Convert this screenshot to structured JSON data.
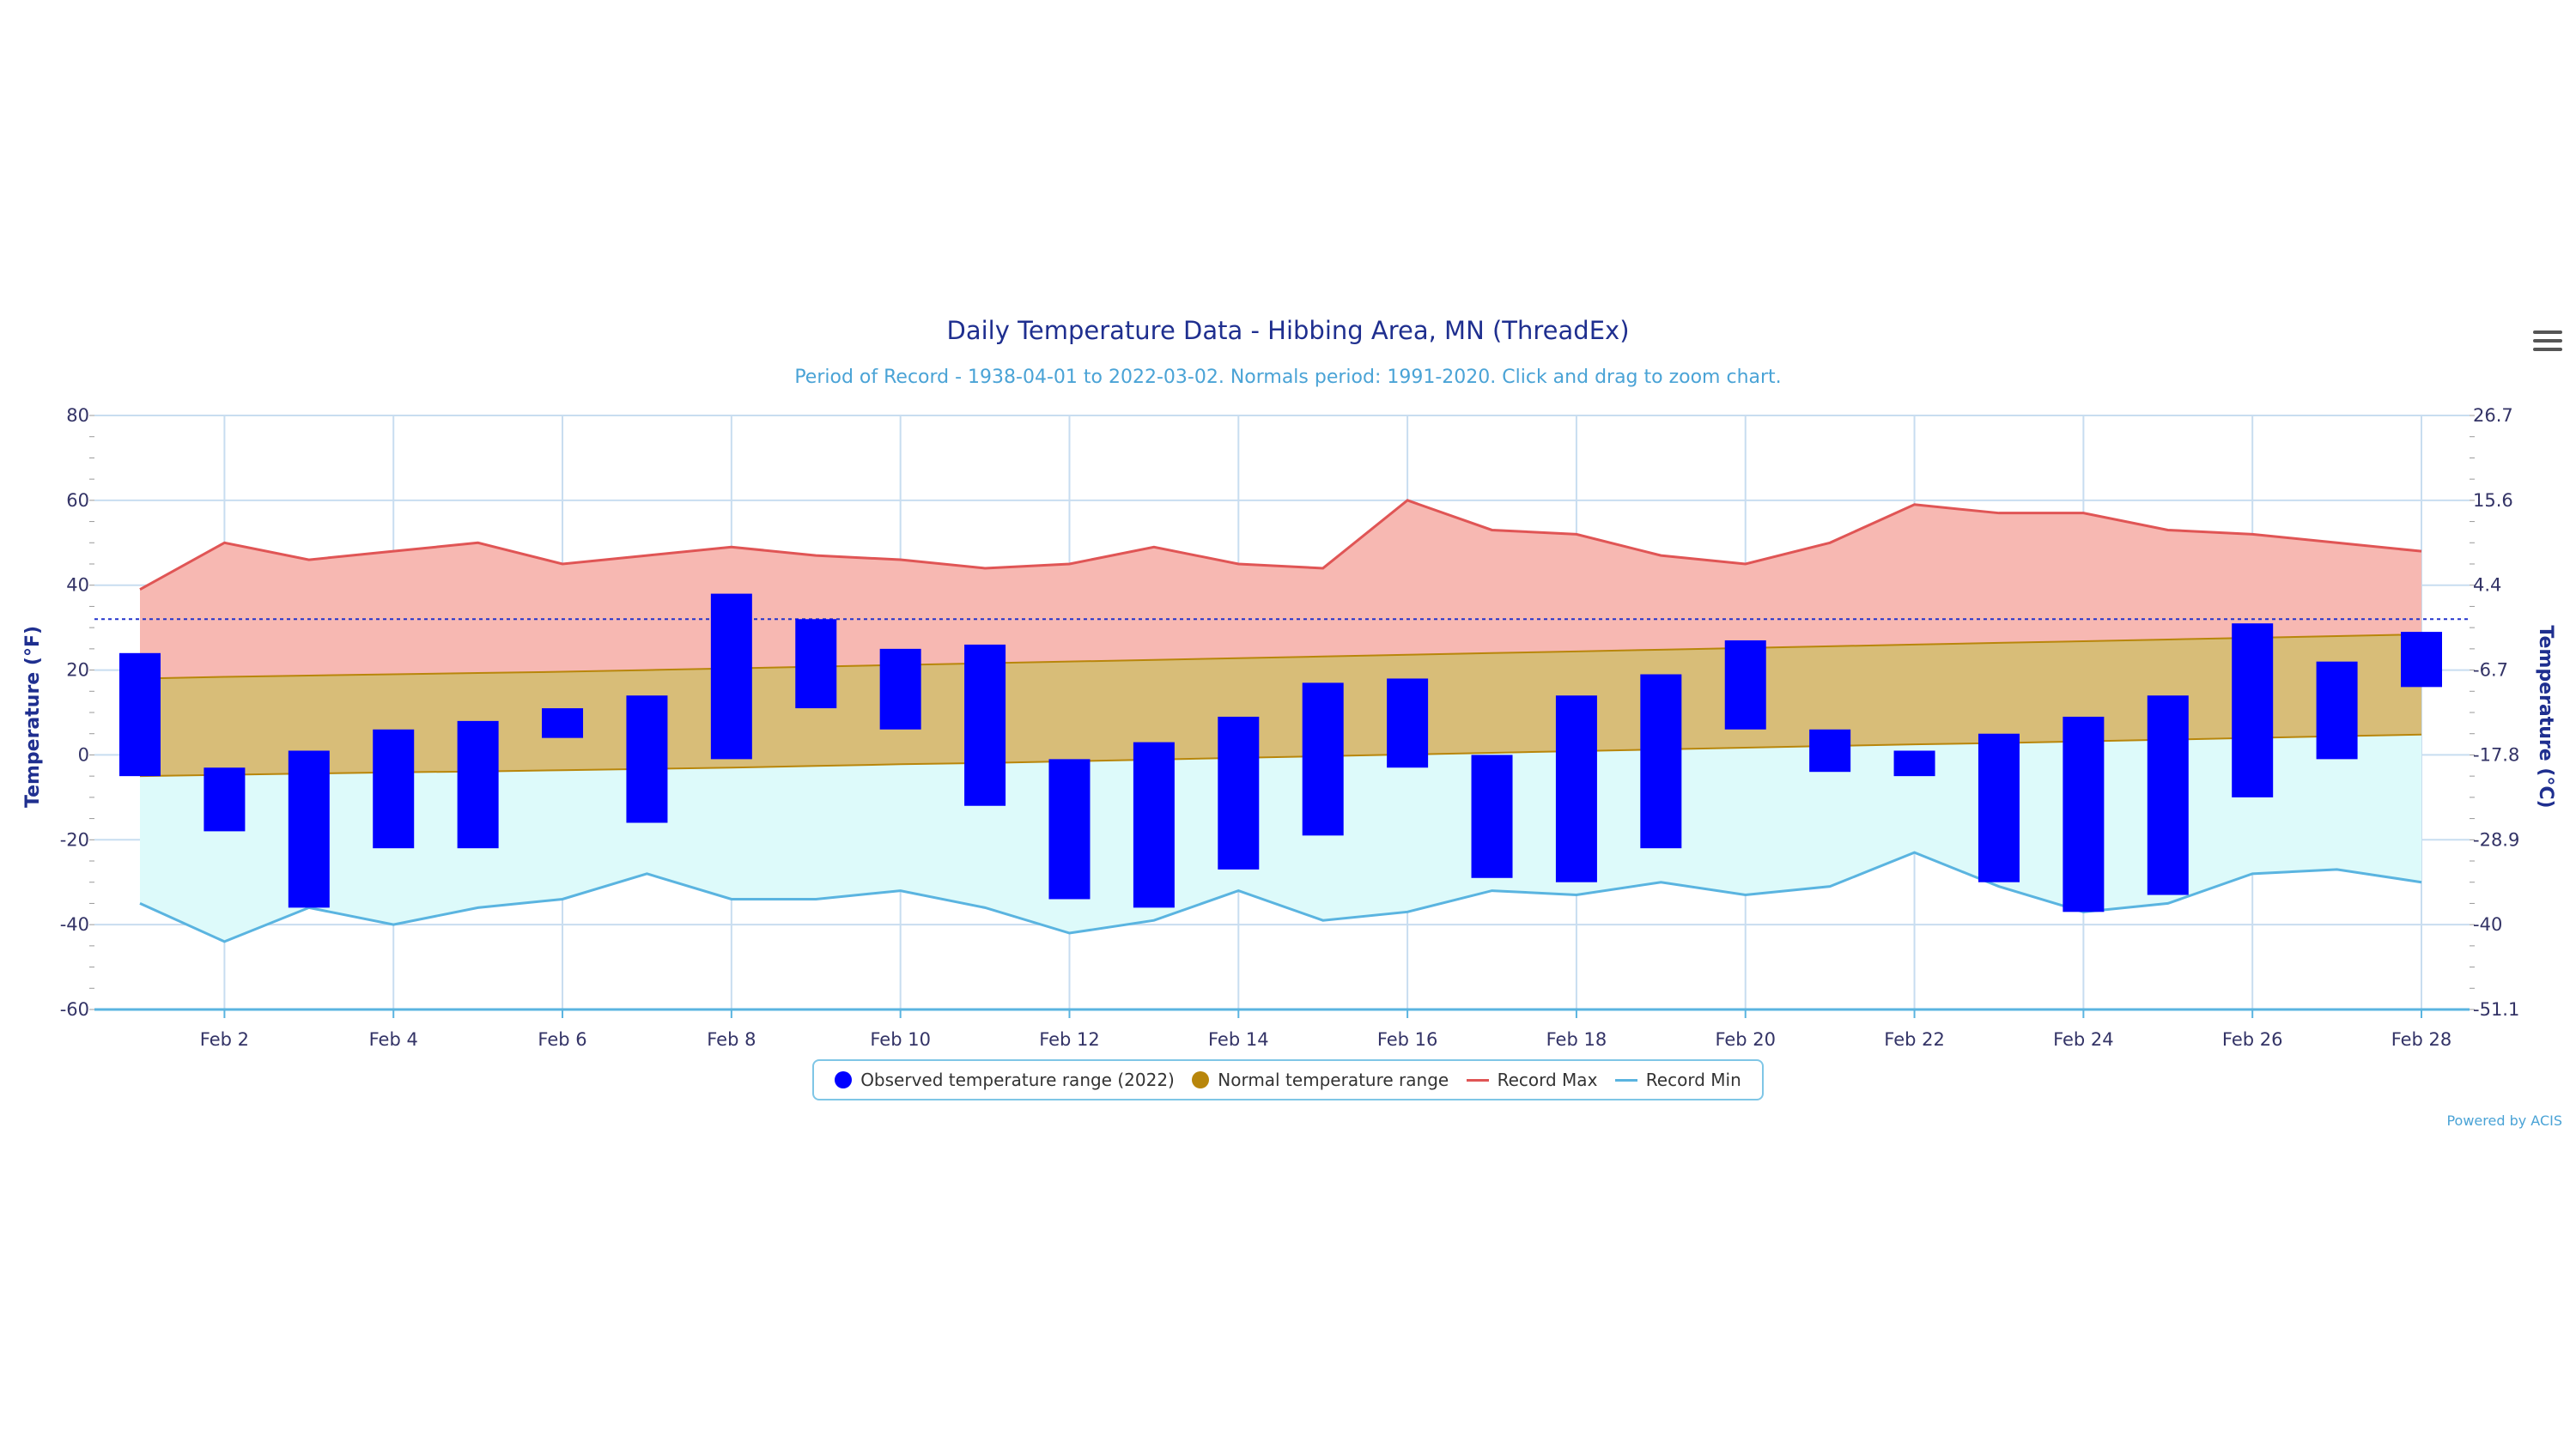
{
  "title": "Daily Temperature Data - Hibbing Area, MN (ThreadEx)",
  "subtitle": "Period of Record - 1938-04-01 to 2022-03-02. Normals period: 1991-2020. Click and drag to zoom chart.",
  "menu_icon": "hamburger-menu-icon",
  "credit": "Powered by ACIS",
  "colors": {
    "observed": "#0000ff",
    "normal_fill": "#d8bd78",
    "normal_line": "#b8860b",
    "record_max_fill": "#f7b8b2",
    "record_max_line": "#e05555",
    "record_min_fill": "#ddfafa",
    "record_min_line": "#5ab4e0",
    "grid": "#c8ddf0",
    "axis_text": "#333366",
    "freezing_line": "#2233cc"
  },
  "legend": [
    {
      "label": "Observed temperature range (2022)",
      "symbol": "dot",
      "color": "#0000ff"
    },
    {
      "label": "Normal temperature range",
      "symbol": "dot",
      "color": "#b8860b"
    },
    {
      "label": "Record Max",
      "symbol": "line",
      "color": "#e05555"
    },
    {
      "label": "Record Min",
      "symbol": "line",
      "color": "#5ab4e0"
    }
  ],
  "chart_data": {
    "type": "bar",
    "title": "Daily Temperature Data - Hibbing Area, MN (ThreadEx)",
    "x_tick_labels": [
      "Feb 2",
      "Feb 4",
      "Feb 6",
      "Feb 8",
      "Feb 10",
      "Feb 12",
      "Feb 14",
      "Feb 16",
      "Feb 18",
      "Feb 20",
      "Feb 22",
      "Feb 24",
      "Feb 26",
      "Feb 28"
    ],
    "x_tick_days": [
      2,
      4,
      6,
      8,
      10,
      12,
      14,
      16,
      18,
      20,
      22,
      24,
      26,
      28
    ],
    "xlim": [
      0.5,
      28
    ],
    "days": [
      1,
      2,
      3,
      4,
      5,
      6,
      7,
      8,
      9,
      10,
      11,
      12,
      13,
      14,
      15,
      16,
      17,
      18,
      19,
      20,
      21,
      22,
      23,
      24,
      25,
      26,
      27,
      28
    ],
    "ylabel_left": "Temperature (°F)",
    "ylabel_right": "Temperature (°C)",
    "ylim": [
      -60,
      80
    ],
    "y_ticks_left": [
      "80",
      "60",
      "40",
      "20",
      "0",
      "-20",
      "-40",
      "-60"
    ],
    "y_tick_values_left": [
      80,
      60,
      40,
      20,
      0,
      -20,
      -40,
      -60
    ],
    "y_ticks_right": [
      "26.7",
      "15.6",
      "4.4",
      "-6.7",
      "-17.8",
      "-28.9",
      "-40",
      "-51.1"
    ],
    "freezing_line_f": 32,
    "series": [
      {
        "name": "Observed temperature range (2022)",
        "kind": "range-bar",
        "low": [
          -5,
          -18,
          -36,
          -22,
          -22,
          4,
          -16,
          -1,
          11,
          6,
          -12,
          -34,
          -36,
          -27,
          -19,
          -3,
          -29,
          -30,
          -22,
          6,
          -4,
          -5,
          -30,
          -37,
          -33,
          -10,
          -1,
          16
        ],
        "high": [
          24,
          -3,
          1,
          6,
          8,
          11,
          14,
          38,
          32,
          25,
          26,
          -1,
          3,
          9,
          17,
          18,
          0,
          14,
          19,
          27,
          6,
          1,
          5,
          9,
          14,
          31,
          22,
          29
        ]
      },
      {
        "name": "Normal temperature range",
        "kind": "range-area",
        "low": [
          -5,
          -4.7,
          -4.4,
          -4.1,
          -3.9,
          -3.6,
          -3.3,
          -3,
          -2.6,
          -2.2,
          -1.9,
          -1.5,
          -1.1,
          -0.7,
          -0.3,
          0.1,
          0.5,
          0.9,
          1.3,
          1.7,
          2.1,
          2.5,
          2.8,
          3.2,
          3.6,
          4,
          4.4,
          4.8
        ],
        "high": [
          18,
          18.4,
          18.7,
          19,
          19.3,
          19.6,
          20,
          20.4,
          20.8,
          21.2,
          21.6,
          22,
          22.4,
          22.8,
          23.2,
          23.6,
          24,
          24.4,
          24.8,
          25.2,
          25.6,
          26,
          26.4,
          26.8,
          27.2,
          27.6,
          28,
          28.4
        ]
      },
      {
        "name": "Record Max",
        "kind": "line",
        "values": [
          39,
          50,
          46,
          48,
          50,
          45,
          47,
          49,
          47,
          46,
          44,
          45,
          49,
          45,
          44,
          60,
          53,
          52,
          47,
          45,
          50,
          59,
          57,
          57,
          53,
          52,
          50,
          48
        ]
      },
      {
        "name": "Record Min",
        "kind": "line",
        "values": [
          -35,
          -44,
          -36,
          -40,
          -36,
          -34,
          -28,
          -34,
          -34,
          -32,
          -36,
          -42,
          -39,
          -32,
          -39,
          -37,
          -32,
          -33,
          -30,
          -33,
          -31,
          -23,
          -31,
          -37,
          -35,
          -28,
          -27,
          -30
        ]
      }
    ]
  }
}
